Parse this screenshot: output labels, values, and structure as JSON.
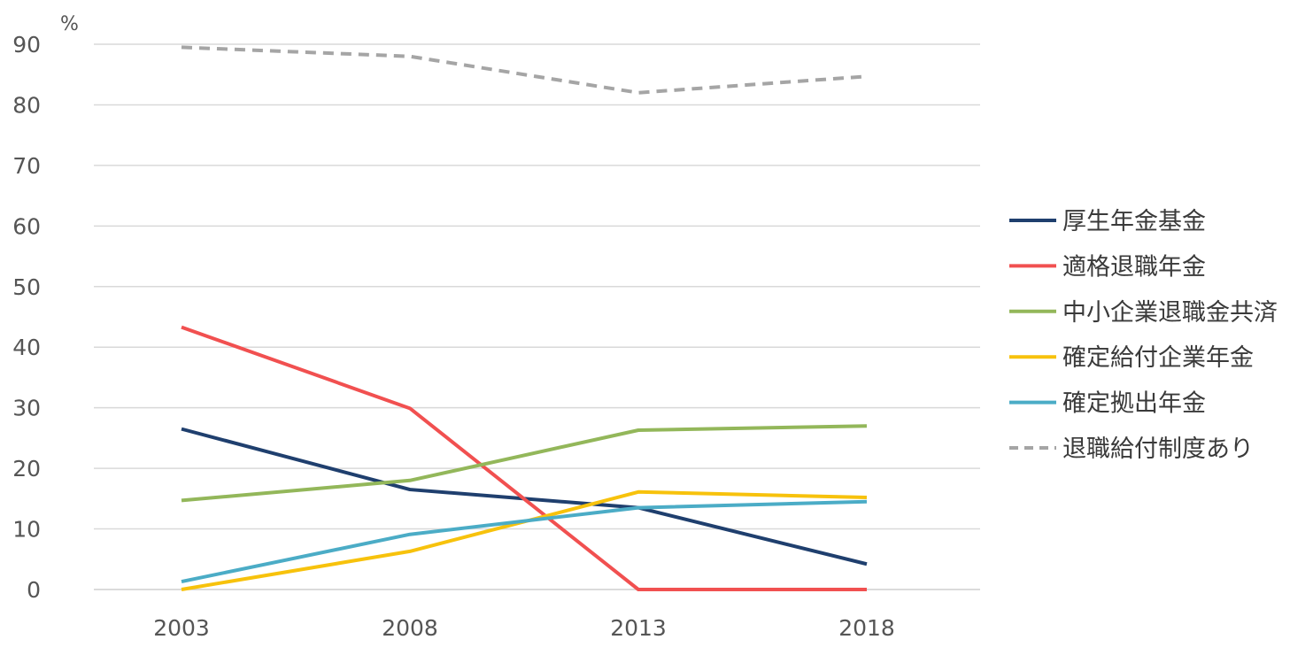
{
  "chart_data": {
    "type": "line",
    "y_unit_label": "%",
    "ylim": [
      0,
      90
    ],
    "y_ticks": [
      0,
      10,
      20,
      30,
      40,
      50,
      60,
      70,
      80,
      90
    ],
    "categories": [
      "2003",
      "2008",
      "2013",
      "2018"
    ],
    "grid": true,
    "legend_position": "right",
    "series": [
      {
        "name": "厚生年金基金",
        "values": [
          26.5,
          16.5,
          13.5,
          4.2
        ],
        "color": "#1f3f6e",
        "dashed": false
      },
      {
        "name": "適格退職年金",
        "values": [
          43.3,
          29.9,
          0.0,
          0.0
        ],
        "color": "#f15050",
        "dashed": false
      },
      {
        "name": "中小企業退職金共済",
        "values": [
          14.7,
          18.0,
          26.3,
          27.0
        ],
        "color": "#93b75a",
        "dashed": false
      },
      {
        "name": "確定給付企業年金",
        "values": [
          0.0,
          6.3,
          16.1,
          15.2
        ],
        "color": "#f7c20c",
        "dashed": false
      },
      {
        "name": "確定拠出年金",
        "values": [
          1.3,
          9.1,
          13.5,
          14.5
        ],
        "color": "#4bacc6",
        "dashed": false
      },
      {
        "name": "退職給付制度あり",
        "values": [
          89.5,
          88.0,
          82.0,
          84.7
        ],
        "color": "#a5a5a5",
        "dashed": true
      }
    ]
  }
}
